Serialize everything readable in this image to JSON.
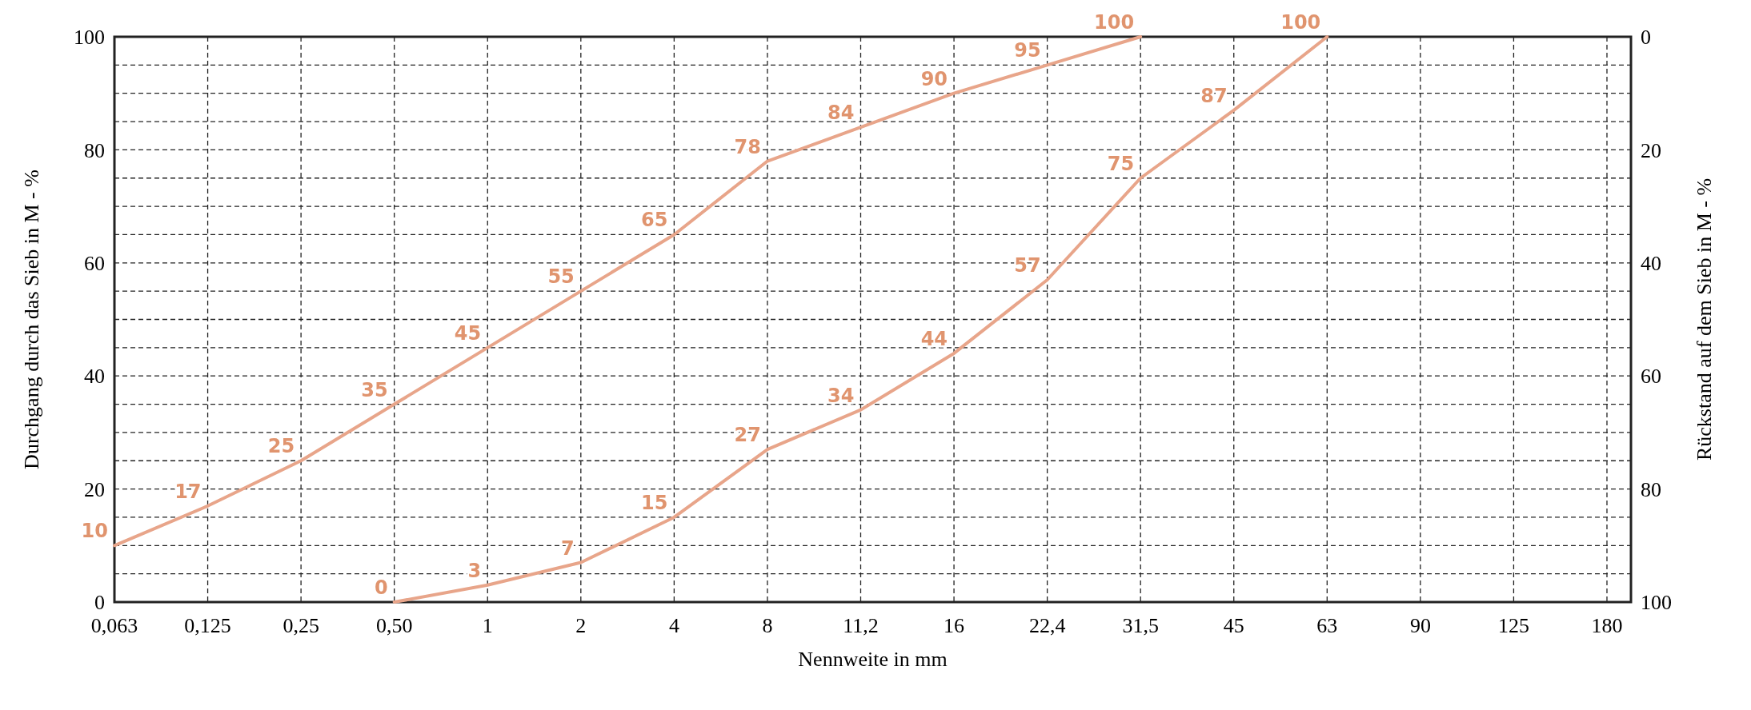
{
  "chart_data": {
    "type": "line",
    "xlabel": "Nennweite in mm",
    "ylabel": "Durchgang durch das Sieb in M - %",
    "y2label": "Rückstand auf dem Sieb in M - %",
    "categories": [
      "0,063",
      "0,125",
      "0,25",
      "0,50",
      "1",
      "2",
      "4",
      "8",
      "11,2",
      "16",
      "22,4",
      "31,5",
      "45",
      "63",
      "90",
      "125",
      "180"
    ],
    "series": [
      {
        "color": "#e8a58a",
        "values": [
          10,
          17,
          25,
          35,
          45,
          55,
          65,
          78,
          84,
          90,
          95,
          100,
          null,
          null,
          null,
          null,
          null
        ]
      },
      {
        "color": "#e8a58a",
        "values": [
          null,
          null,
          null,
          0,
          3,
          7,
          15,
          27,
          34,
          44,
          57,
          75,
          87,
          100,
          null,
          null,
          null
        ]
      }
    ],
    "ylim": [
      0,
      100
    ],
    "yticks": [
      0,
      {
        "value": 5,
        "label": null
      },
      {
        "value": 10,
        "label": null
      },
      {
        "value": 15,
        "label": null
      },
      20,
      {
        "value": 25,
        "label": null
      },
      {
        "value": 30,
        "label": null
      },
      {
        "value": 35,
        "label": null
      },
      40,
      {
        "value": 45,
        "label": null
      },
      {
        "value": 50,
        "label": null
      },
      {
        "value": 55,
        "label": null
      },
      60,
      {
        "value": 65,
        "label": null
      },
      {
        "value": 70,
        "label": null
      },
      {
        "value": 75,
        "label": null
      },
      80,
      {
        "value": 85,
        "label": null
      },
      {
        "value": 90,
        "label": null
      },
      {
        "value": 95,
        "label": null
      },
      100
    ],
    "y2lim": [
      100,
      0
    ],
    "y2ticks": [
      0,
      20,
      40,
      60,
      80,
      100
    ],
    "grid": true,
    "data_labels": true,
    "line_style": "solid",
    "marker": "none"
  }
}
